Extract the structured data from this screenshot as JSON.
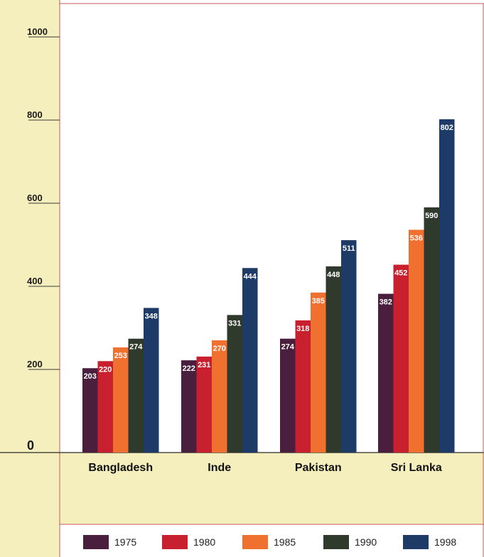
{
  "chart_data": {
    "type": "bar",
    "title": "",
    "xlabel": "",
    "ylabel": "",
    "categories": [
      "Bangladesh",
      "Inde",
      "Pakistan",
      "Sri Lanka"
    ],
    "series": [
      {
        "name": "1975",
        "color": "#4a1f3d",
        "values": [
          203,
          222,
          274,
          382
        ]
      },
      {
        "name": "1980",
        "color": "#c8202e",
        "values": [
          220,
          231,
          318,
          452
        ]
      },
      {
        "name": "1985",
        "color": "#f07030",
        "values": [
          253,
          270,
          385,
          536
        ]
      },
      {
        "name": "1990",
        "color": "#2f3a2c",
        "values": [
          274,
          331,
          448,
          590
        ]
      },
      {
        "name": "1998",
        "color": "#1e3a66",
        "values": [
          348,
          444,
          511,
          802
        ]
      }
    ],
    "ylim": [
      0,
      1000
    ],
    "yticks": [
      {
        "value": 0,
        "label": "0"
      },
      {
        "value": 200,
        "label": "200"
      },
      {
        "value": 400,
        "label": "400"
      },
      {
        "value": 600,
        "label": "600"
      },
      {
        "value": 800,
        "label": "800"
      },
      {
        "value": 1000,
        "label": "1000"
      }
    ],
    "grid": false,
    "legend_position": "bottom",
    "data_labels": true
  },
  "colors": {
    "axis_band": "#f5efbe",
    "plot_background": "#ffffff",
    "border": "#c85a5a",
    "value_label": "#ffffff"
  }
}
